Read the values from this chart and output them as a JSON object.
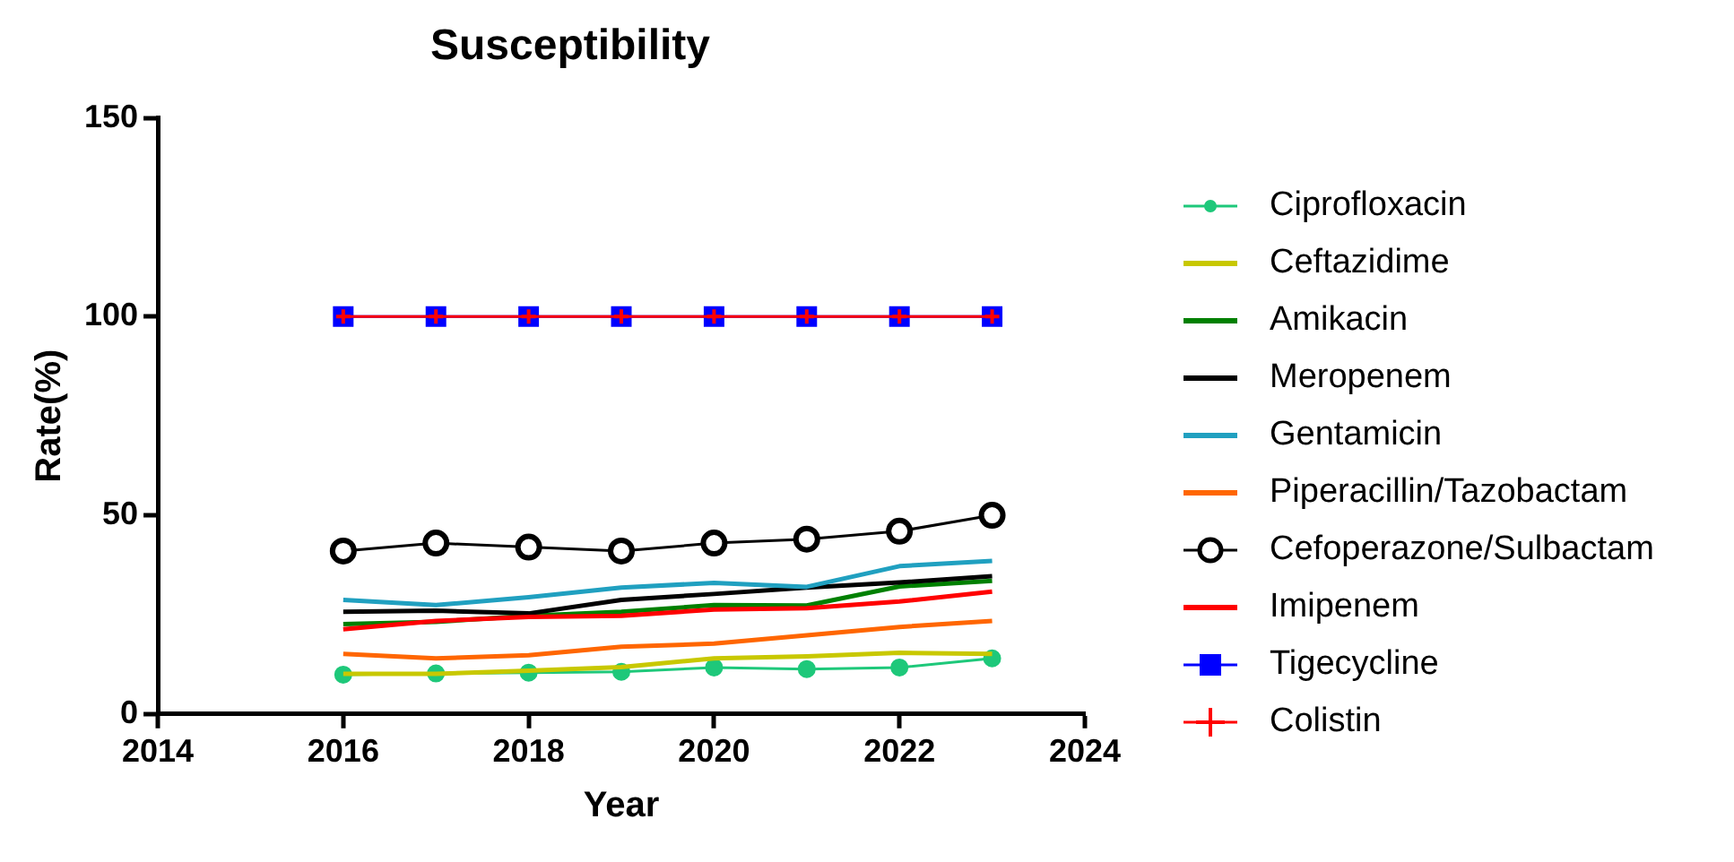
{
  "chart_data": {
    "type": "line",
    "title": "Susceptibility",
    "xlabel": "Year",
    "ylabel": "Rate(%)",
    "x": [
      2016,
      2017,
      2018,
      2019,
      2020,
      2021,
      2022,
      2023
    ],
    "xlim": [
      2014,
      2024
    ],
    "xticks": [
      2014,
      2016,
      2018,
      2020,
      2022,
      2024
    ],
    "ylim": [
      0,
      150
    ],
    "yticks": [
      0,
      50,
      100,
      150
    ],
    "grid": false,
    "legend": "right",
    "series": [
      {
        "name": "Ciprofloxacin",
        "color": "#1ec87a",
        "marker": "circle",
        "values": [
          9.9,
          10.2,
          10.4,
          10.6,
          11.7,
          11.3,
          11.7,
          14.0
        ]
      },
      {
        "name": "Ceftazidime",
        "color": "#c8c800",
        "marker": "none",
        "values": [
          10.1,
          10.1,
          10.9,
          11.8,
          14.0,
          14.5,
          15.4,
          15.1
        ]
      },
      {
        "name": "Amikacin",
        "color": "#008000",
        "marker": "none",
        "values": [
          22.6,
          23.2,
          24.7,
          25.7,
          27.4,
          27.3,
          32.1,
          33.5
        ]
      },
      {
        "name": "Meropenem",
        "color": "#000000",
        "marker": "none",
        "values": [
          25.7,
          26.0,
          25.3,
          28.7,
          30.2,
          31.8,
          33.1,
          34.7
        ]
      },
      {
        "name": "Gentamicin",
        "color": "#20a0c0",
        "marker": "none",
        "values": [
          28.7,
          27.4,
          29.4,
          31.8,
          33.0,
          32.0,
          37.2,
          38.5
        ]
      },
      {
        "name": "Piperacillin/Tazobactam",
        "color": "#ff6600",
        "marker": "none",
        "values": [
          15.1,
          14.0,
          14.8,
          16.9,
          17.7,
          19.8,
          21.9,
          23.4
        ]
      },
      {
        "name": "Cefoperazone/Sulbactam",
        "color": "#000000",
        "marker": "circle",
        "values": [
          41,
          43,
          42,
          41,
          43,
          44,
          46,
          50
        ]
      },
      {
        "name": "Imipenem",
        "color": "#ff0000",
        "marker": "none",
        "values": [
          21.3,
          23.4,
          24.4,
          24.7,
          26.3,
          26.6,
          28.3,
          30.8
        ]
      },
      {
        "name": "Tigecycline",
        "color": "#0000ff",
        "marker": "square",
        "values": [
          100,
          100,
          100,
          100,
          100,
          100,
          100,
          100
        ]
      },
      {
        "name": "Colistin",
        "color": "#ff0000",
        "marker": "cross",
        "values": [
          100,
          100,
          100,
          100,
          100,
          100,
          100,
          100
        ]
      }
    ]
  }
}
